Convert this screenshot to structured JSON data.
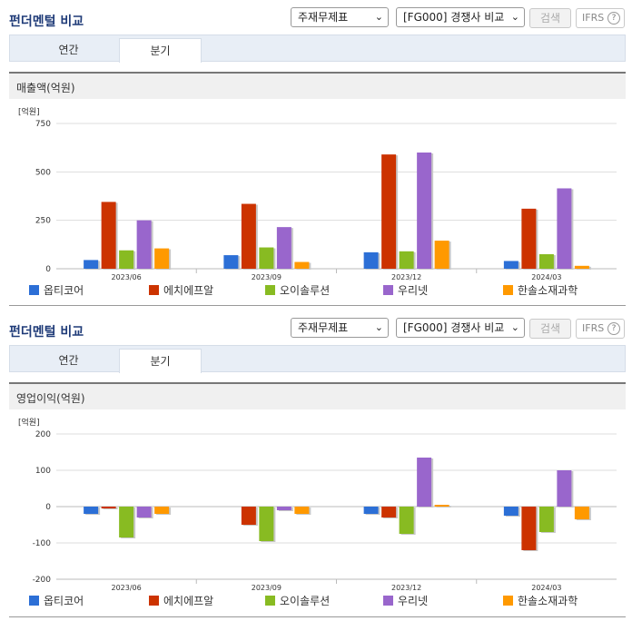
{
  "panels": [
    {
      "title": "펀더멘털 비교",
      "statement_select": "주재무제표",
      "compare_select": "[FG000] 경쟁사 비교",
      "search_label": "검색",
      "ifrs_label": "IFRS",
      "ifrs_help": "?",
      "tabs": [
        {
          "label": "연간"
        },
        {
          "label": "분기"
        }
      ],
      "active_tab": 1,
      "section_title": "매출액(억원)"
    },
    {
      "title": "펀더멘털 비교",
      "statement_select": "주재무제표",
      "compare_select": "[FG000] 경쟁사 비교",
      "search_label": "검색",
      "ifrs_label": "IFRS",
      "ifrs_help": "?",
      "tabs": [
        {
          "label": "연간"
        },
        {
          "label": "분기"
        }
      ],
      "active_tab": 1,
      "section_title": "영업이익(억원)"
    }
  ],
  "chart_data": [
    {
      "type": "bar",
      "unit_label": "[억원]",
      "categories": [
        "2023/06",
        "2023/09",
        "2023/12",
        "2024/03"
      ],
      "ylim": [
        0,
        750
      ],
      "yticks": [
        0,
        250,
        500,
        750
      ],
      "ytick_labels": [
        "0",
        "250",
        "500",
        "750"
      ],
      "grid": true,
      "legend_position": "bottom",
      "series": [
        {
          "name": "옵티코어",
          "color": "#2c6fd6",
          "values": [
            45,
            70,
            85,
            40
          ]
        },
        {
          "name": "에치에프알",
          "color": "#cc3300",
          "values": [
            345,
            335,
            590,
            310
          ]
        },
        {
          "name": "오이솔루션",
          "color": "#88bb22",
          "values": [
            95,
            110,
            90,
            75
          ]
        },
        {
          "name": "우리넷",
          "color": "#9966cc",
          "values": [
            250,
            215,
            600,
            415
          ]
        },
        {
          "name": "한솔소재과학",
          "color": "#ff9900",
          "values": [
            105,
            35,
            145,
            15
          ]
        }
      ]
    },
    {
      "type": "bar",
      "unit_label": "[억원]",
      "categories": [
        "2023/06",
        "2023/09",
        "2023/12",
        "2024/03"
      ],
      "ylim": [
        -200,
        200
      ],
      "yticks": [
        -200,
        -100,
        0,
        100,
        200
      ],
      "ytick_labels": [
        "-200",
        "-100",
        "0",
        "100",
        "200"
      ],
      "grid": true,
      "legend_position": "bottom",
      "series": [
        {
          "name": "옵티코어",
          "color": "#2c6fd6",
          "values": [
            -20,
            0,
            -20,
            -25
          ]
        },
        {
          "name": "에치에프알",
          "color": "#cc3300",
          "values": [
            -5,
            -50,
            -30,
            -120
          ]
        },
        {
          "name": "오이솔루션",
          "color": "#88bb22",
          "values": [
            -85,
            -95,
            -75,
            -70
          ]
        },
        {
          "name": "우리넷",
          "color": "#9966cc",
          "values": [
            -30,
            -10,
            135,
            100
          ]
        },
        {
          "name": "한솔소재과학",
          "color": "#ff9900",
          "values": [
            -20,
            -20,
            5,
            -35
          ]
        }
      ]
    }
  ]
}
